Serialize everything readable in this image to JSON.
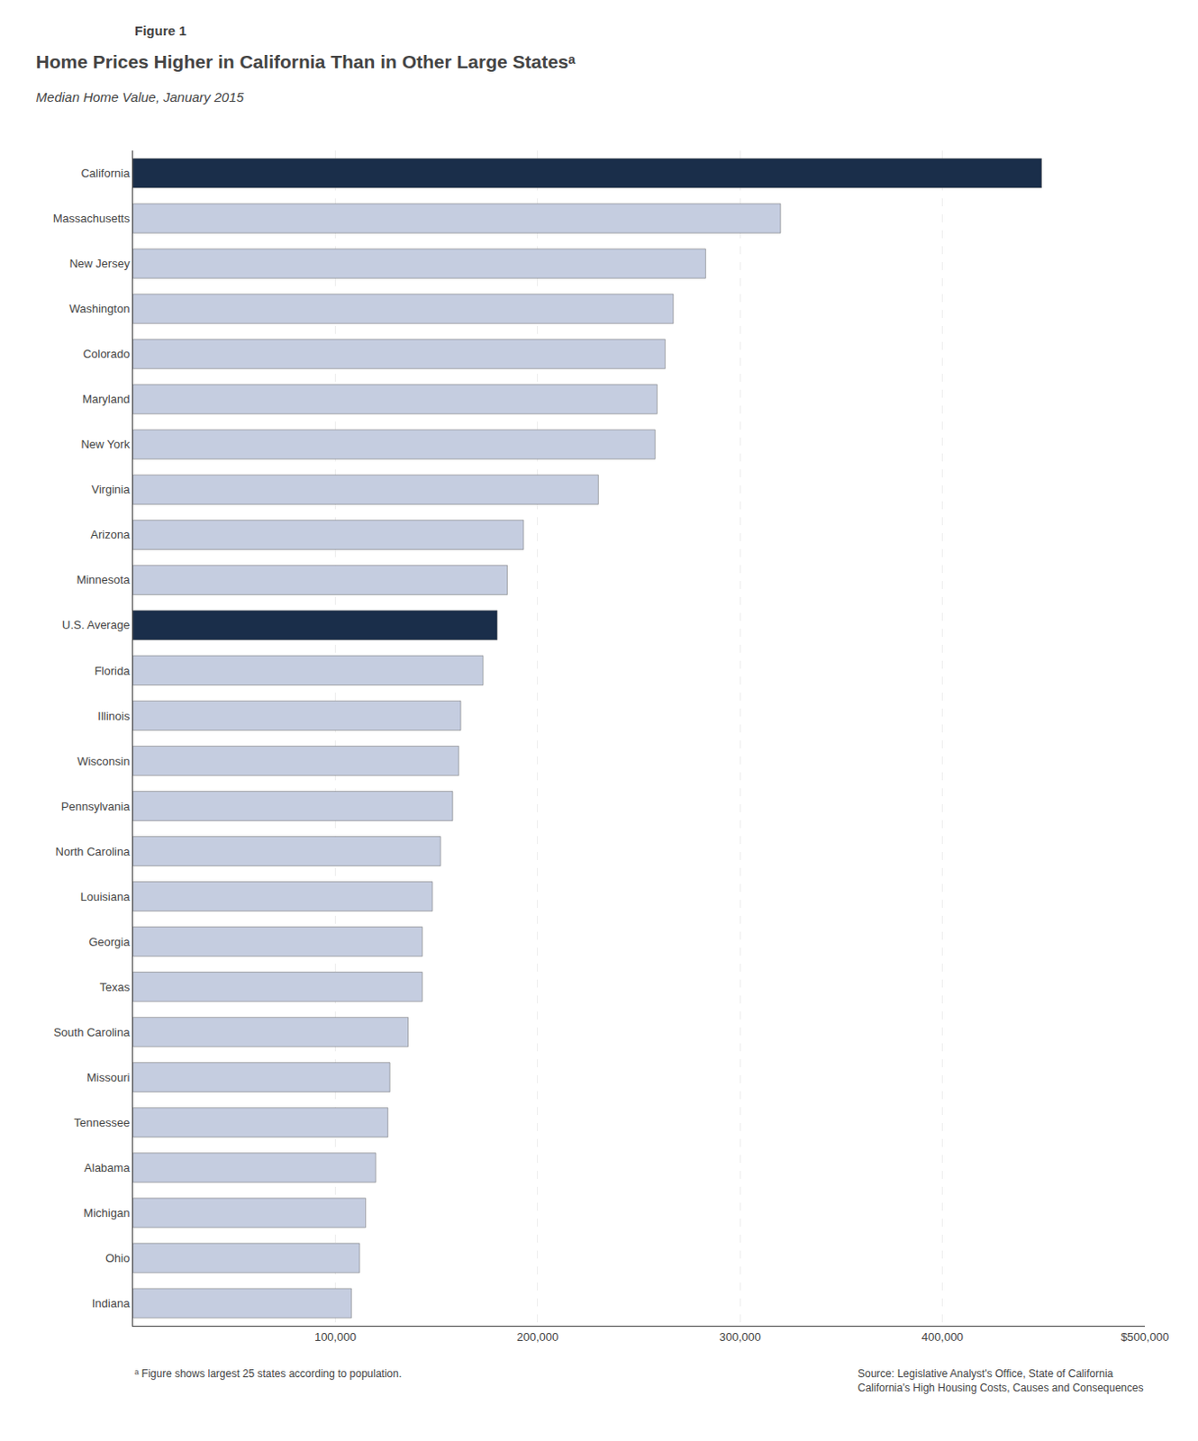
{
  "chart_data": {
    "type": "bar",
    "orientation": "horizontal",
    "title": "Home Prices Higher in California Than in Other Large Statesᵃ",
    "subtitle": "Median Home Value, January 2015",
    "annotations": [
      "Figure 1",
      "ᵃ Figure shows largest 25 states according to population.",
      "Source: Legislative Analyst's Office, State of California",
      "California's High Housing Costs, Causes and Consequences"
    ],
    "categories": [
      "California",
      "Massachusetts",
      "New Jersey",
      "Washington",
      "Colorado",
      "Maryland",
      "New York",
      "Virginia",
      "Arizona",
      "Minnesota",
      "U.S. Average",
      "Florida",
      "Illinois",
      "Wisconsin",
      "Pennsylvania",
      "North Carolina",
      "Louisiana",
      "Georgia",
      "Texas",
      "South Carolina",
      "Missouri",
      "Tennessee",
      "Alabama",
      "Michigan",
      "Ohio",
      "Indiana"
    ],
    "values": [
      449000,
      320000,
      283000,
      267000,
      263000,
      259000,
      258000,
      230000,
      193000,
      185000,
      180000,
      173000,
      162000,
      161000,
      158000,
      152000,
      148000,
      143000,
      143000,
      136000,
      127000,
      126000,
      120000,
      115000,
      112000,
      108000
    ],
    "colors": [
      "#1a2e4a",
      "#c5cde0",
      "#c5cde0",
      "#c5cde0",
      "#c5cde0",
      "#c5cde0",
      "#c5cde0",
      "#c5cde0",
      "#c5cde0",
      "#c5cde0",
      "#1a2e4a",
      "#c5cde0",
      "#c5cde0",
      "#c5cde0",
      "#c5cde0",
      "#c5cde0",
      "#c5cde0",
      "#c5cde0",
      "#c5cde0",
      "#c5cde0",
      "#c5cde0",
      "#c5cde0",
      "#c5cde0",
      "#c5cde0",
      "#c5cde0",
      "#c5cde0"
    ],
    "xlim": [
      0,
      500000
    ],
    "xticks": [
      {
        "value": 100000,
        "label": "100,000"
      },
      {
        "value": 200000,
        "label": "200,000"
      },
      {
        "value": 300000,
        "label": "300,000"
      },
      {
        "value": 400000,
        "label": "400,000"
      },
      {
        "value": 500000,
        "label": "$500,000"
      }
    ],
    "grid": true
  }
}
